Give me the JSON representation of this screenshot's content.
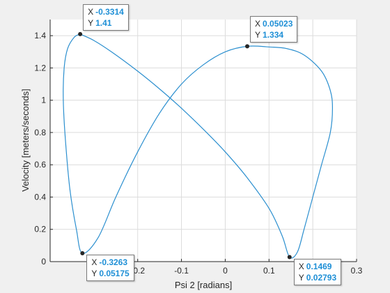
{
  "chart_data": {
    "type": "line",
    "xlabel": "Psi 2 [radians]",
    "ylabel": "Velocity [meters/seconds]",
    "xlim": [
      -0.4,
      0.3
    ],
    "ylim": [
      0,
      1.5
    ],
    "xticks": [
      -0.2,
      -0.1,
      0,
      0.1,
      0.2,
      0.3
    ],
    "xtick_labels": [
      "-0.2",
      "-0.1",
      "0",
      "0.1",
      "0.2",
      "0.3"
    ],
    "yticks": [
      0,
      0.2,
      0.4,
      0.6,
      0.8,
      1,
      1.2,
      1.4
    ],
    "ytick_labels": [
      "0",
      "0.2",
      "0.4",
      "0.6",
      "0.8",
      "1",
      "1.2",
      "1.4"
    ],
    "grid": true,
    "line_color": "#2b8fcf",
    "series": [
      {
        "x": [
          -0.3314,
          -0.3,
          -0.26,
          -0.2,
          -0.15,
          -0.1,
          -0.05,
          0.0,
          0.05,
          0.1,
          0.13,
          0.1469,
          0.165,
          0.18,
          0.2,
          0.22,
          0.24,
          0.245,
          0.24,
          0.22,
          0.18,
          0.14,
          0.1,
          0.05023,
          0.0,
          -0.05,
          -0.1,
          -0.15,
          -0.2,
          -0.25,
          -0.29,
          -0.3263,
          -0.34,
          -0.355,
          -0.365,
          -0.37,
          -0.368,
          -0.36,
          -0.345,
          -0.3314
        ],
        "y": [
          1.41,
          1.37,
          1.3,
          1.18,
          1.07,
          0.95,
          0.82,
          0.68,
          0.52,
          0.33,
          0.16,
          0.02793,
          0.06,
          0.2,
          0.4,
          0.6,
          0.8,
          0.95,
          1.06,
          1.18,
          1.28,
          1.32,
          1.33,
          1.334,
          1.3,
          1.22,
          1.1,
          0.92,
          0.68,
          0.4,
          0.15,
          0.05175,
          0.2,
          0.45,
          0.75,
          1.0,
          1.2,
          1.32,
          1.39,
          1.41
        ]
      }
    ],
    "datatips": [
      {
        "x": "-0.3314",
        "y": "1.41",
        "xv": -0.3314,
        "yv": 1.41
      },
      {
        "x": "0.05023",
        "y": "1.334",
        "xv": 0.05023,
        "yv": 1.334
      },
      {
        "x": "-0.3263",
        "y": "0.05175",
        "xv": -0.3263,
        "yv": 0.05175
      },
      {
        "x": "0.1469",
        "y": "0.02793",
        "xv": 0.1469,
        "yv": 0.02793
      }
    ],
    "tip_key_x": "X",
    "tip_key_y": "Y"
  }
}
